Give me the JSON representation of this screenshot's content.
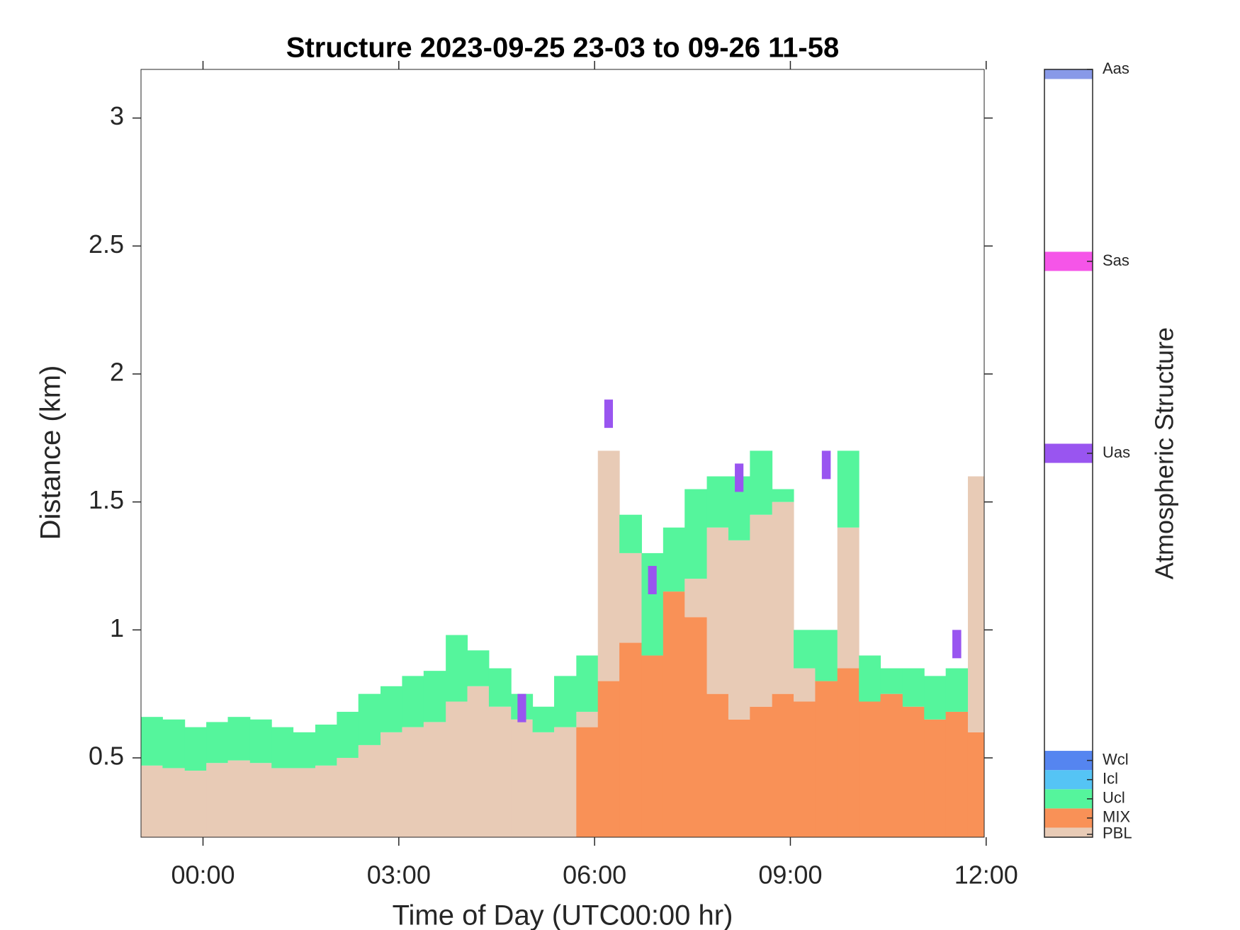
{
  "chart_data": {
    "type": "layers",
    "title": "Structure 2023-09-25 23-03 to 09-26 11-58",
    "x_label": "Time of Day (UTC00:00 hr)",
    "y_label": "Distance (km)",
    "xlim": [
      -0.95,
      11.97
    ],
    "xticks": [
      {
        "value": 0,
        "label": "00:00"
      },
      {
        "value": 3,
        "label": "03:00"
      },
      {
        "value": 6,
        "label": "06:00"
      },
      {
        "value": 9,
        "label": "09:00"
      },
      {
        "value": 12,
        "label": "12:00"
      }
    ],
    "ylim": [
      0.19,
      3.19
    ],
    "yticks": [
      0.5,
      1,
      1.5,
      2,
      2.5,
      3
    ],
    "x": [
      -0.95,
      -0.62,
      -0.28,
      0.05,
      0.38,
      0.72,
      1.05,
      1.38,
      1.72,
      2.05,
      2.38,
      2.72,
      3.05,
      3.38,
      3.72,
      4.05,
      4.38,
      4.72,
      5.05,
      5.38,
      5.72,
      6.05,
      6.38,
      6.72,
      7.05,
      7.38,
      7.72,
      8.05,
      8.38,
      8.72,
      9.05,
      9.38,
      9.72,
      10.05,
      10.38,
      10.72,
      11.05,
      11.38,
      11.72
    ],
    "series": [
      {
        "name": "PBL",
        "color": "#e8cbb6",
        "level": 0.15,
        "values": [
          0.47,
          0.46,
          0.45,
          0.48,
          0.49,
          0.48,
          0.46,
          0.46,
          0.47,
          0.5,
          0.55,
          0.6,
          0.62,
          0.64,
          0.72,
          0.78,
          0.7,
          0.65,
          0.6,
          0.62,
          0.68,
          1.7,
          1.3,
          0.9,
          null,
          1.2,
          1.4,
          1.35,
          1.45,
          1.5,
          0.85,
          0.8,
          1.4,
          null,
          null,
          null,
          null,
          null,
          1.6
        ]
      },
      {
        "name": "MIX",
        "color": "#f99157",
        "level": 1,
        "values": [
          null,
          null,
          null,
          null,
          null,
          null,
          null,
          null,
          null,
          null,
          null,
          null,
          null,
          null,
          null,
          null,
          null,
          null,
          null,
          null,
          0.62,
          0.8,
          0.95,
          0.9,
          1.15,
          1.05,
          0.75,
          0.65,
          0.7,
          0.75,
          0.72,
          0.8,
          0.85,
          0.72,
          0.75,
          0.7,
          0.65,
          0.68,
          0.6
        ]
      },
      {
        "name": "Ucl",
        "color": "#55f59c",
        "level": 2,
        "values": [
          0.66,
          0.65,
          0.62,
          0.64,
          0.66,
          0.65,
          0.62,
          0.6,
          0.63,
          0.68,
          0.75,
          0.78,
          0.82,
          0.84,
          0.98,
          0.92,
          0.85,
          0.75,
          0.7,
          0.82,
          0.9,
          1.4,
          1.45,
          1.3,
          1.4,
          1.55,
          1.6,
          1.6,
          1.7,
          1.55,
          1.0,
          1.0,
          1.7,
          0.9,
          0.85,
          0.85,
          0.82,
          0.85,
          0.9
        ]
      },
      {
        "name": "Icl",
        "color": "#55c4f5",
        "level": 3
      },
      {
        "name": "Wcl",
        "color": "#5585f0",
        "level": 4
      },
      {
        "name": "Uas",
        "color": "#9955f0",
        "level": 20,
        "values": [
          null,
          null,
          null,
          null,
          null,
          null,
          null,
          null,
          null,
          null,
          null,
          null,
          null,
          null,
          null,
          null,
          null,
          0.75,
          null,
          null,
          null,
          1.9,
          null,
          1.25,
          null,
          null,
          null,
          1.65,
          null,
          null,
          null,
          1.7,
          null,
          null,
          null,
          null,
          null,
          1.0,
          null
        ]
      },
      {
        "name": "Sas",
        "color": "#f555e8",
        "level": 30
      },
      {
        "name": "Aas",
        "color": "#8899e8",
        "level": 40
      }
    ],
    "colorbar": {
      "label": "Atmospheric Structure",
      "lim": [
        0,
        40
      ]
    }
  }
}
